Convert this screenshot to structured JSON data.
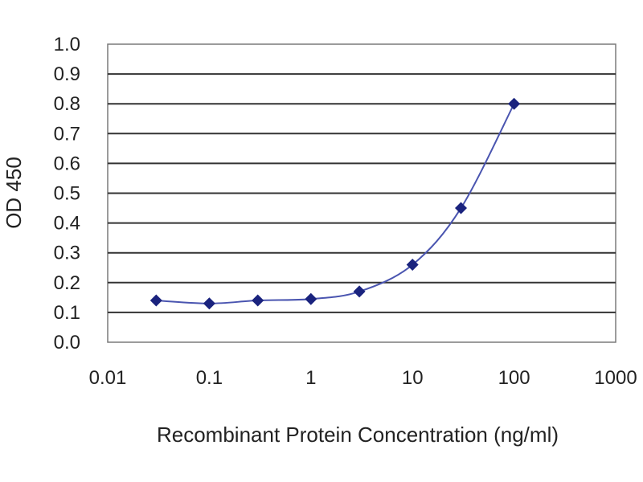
{
  "chart_data": {
    "type": "scatter",
    "title": "",
    "xlabel": "Recombinant Protein Concentration (ng/ml)",
    "ylabel": "OD 450",
    "x_scale": "log",
    "xlim": [
      0.01,
      1000
    ],
    "ylim": [
      0.0,
      1.0
    ],
    "x_ticks": [
      "0.01",
      "0.1",
      "1",
      "10",
      "100",
      "1000"
    ],
    "y_ticks": [
      "0.0",
      "0.1",
      "0.2",
      "0.3",
      "0.4",
      "0.5",
      "0.6",
      "0.7",
      "0.8",
      "0.9",
      "1.0"
    ],
    "grid": "horizontal",
    "legend": "none",
    "colors": {
      "series": "#1a237e",
      "curve": "#4a55b0",
      "plot_background": "#ffffff",
      "plot_border": "#7a7a7a",
      "gridlines": "#333333"
    },
    "series": [
      {
        "x": [
          0.03,
          0.1,
          0.3,
          1,
          3,
          10,
          30,
          100
        ],
        "y": [
          0.14,
          0.13,
          0.14,
          0.145,
          0.17,
          0.26,
          0.45,
          0.8
        ]
      }
    ]
  }
}
